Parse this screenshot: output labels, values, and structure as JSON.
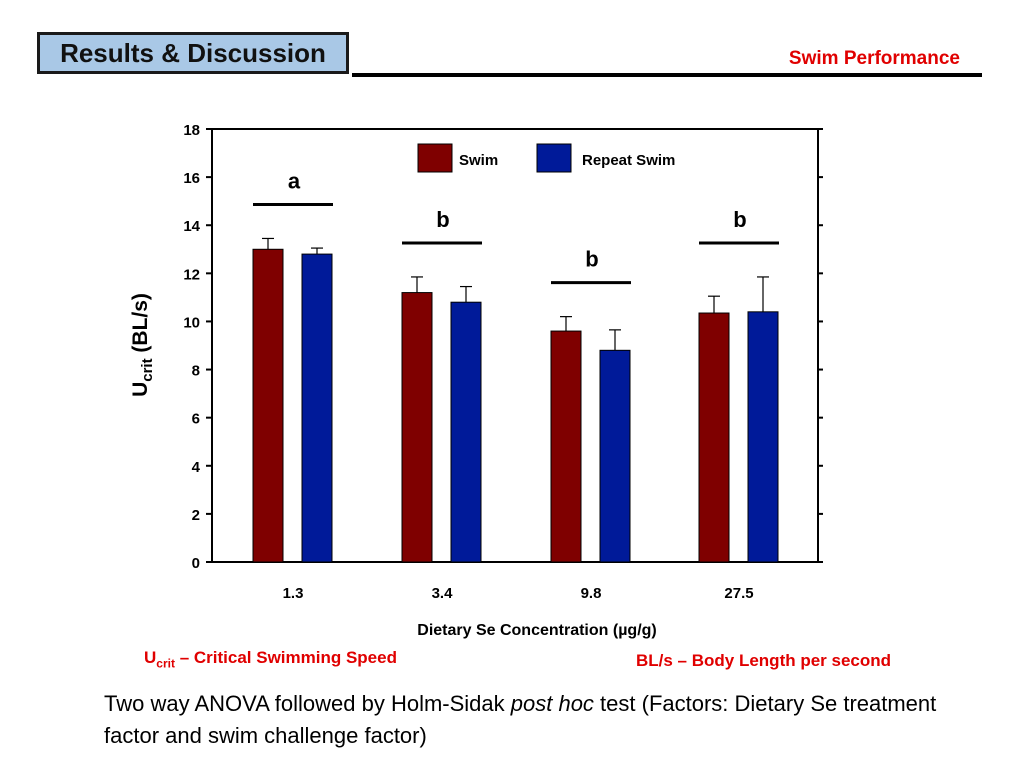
{
  "header": {
    "section_title": "Results & Discussion",
    "topic": "Swim Performance",
    "colors": {
      "box_fill": "#a9c8e6",
      "topic_text": "#e00000"
    }
  },
  "chart_data": {
    "type": "bar",
    "categories": [
      "1.3",
      "3.4",
      "9.8",
      "27.5"
    ],
    "series": [
      {
        "name": "Swim",
        "values": [
          13.0,
          11.2,
          9.6,
          10.35
        ],
        "errors": [
          0.45,
          0.65,
          0.6,
          0.7
        ],
        "color": "#7f0000"
      },
      {
        "name": "Repeat Swim",
        "values": [
          12.8,
          10.8,
          8.8,
          10.4
        ],
        "errors": [
          0.25,
          0.65,
          0.85,
          1.45
        ],
        "color": "#001a99"
      }
    ],
    "ylim": [
      0,
      18
    ],
    "yticks": [
      "0",
      "2",
      "4",
      "6",
      "8",
      "10",
      "12",
      "14",
      "16",
      "18"
    ],
    "ylabel": {
      "main": "U",
      "sub": "crit",
      "unit": " (BL/s)"
    },
    "xlabel": "Dietary Se Concentration (µg/g)",
    "significance": [
      {
        "letter": "a",
        "groups": [
          0
        ]
      },
      {
        "letter": "b",
        "groups": [
          1
        ]
      },
      {
        "letter": "b",
        "groups": [
          2
        ]
      },
      {
        "letter": "b",
        "groups": [
          3
        ]
      }
    ],
    "legend_position": "top-center"
  },
  "definitions": {
    "ucrit": {
      "symbol": "U",
      "sub": "crit",
      "text": " – Critical Swimming Speed"
    },
    "bls": {
      "text": "BL/s – Body Length per second"
    }
  },
  "footnote": {
    "before": "Two way ANOVA followed by Holm-Sidak ",
    "italic": "post hoc",
    "after": " test (Factors: Dietary Se treatment factor and swim challenge factor)"
  }
}
